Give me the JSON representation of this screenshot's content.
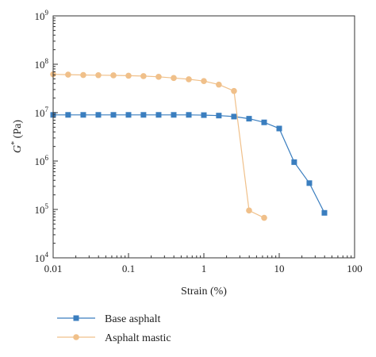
{
  "chart_data": {
    "type": "line",
    "xscale": "log",
    "yscale": "log",
    "xlim": [
      0.01,
      100
    ],
    "ylim": [
      10000,
      1000000000
    ],
    "xlabel": "Strain (%)",
    "ylabel_main": "G",
    "ylabel_sup": "*",
    "ylabel_unit": " (Pa)",
    "x_ticks": [
      {
        "value": 0.01,
        "label": "0.01"
      },
      {
        "value": 0.1,
        "label": "0.1"
      },
      {
        "value": 1,
        "label": "1"
      },
      {
        "value": 10,
        "label": "10"
      },
      {
        "value": 100,
        "label": "100"
      }
    ],
    "y_ticks": [
      {
        "value": 10000,
        "base": "10",
        "exp": "4"
      },
      {
        "value": 100000,
        "base": "10",
        "exp": "5"
      },
      {
        "value": 1000000,
        "base": "10",
        "exp": "6"
      },
      {
        "value": 10000000,
        "base": "10",
        "exp": "7"
      },
      {
        "value": 100000000,
        "base": "10",
        "exp": "8"
      },
      {
        "value": 1000000000,
        "base": "10",
        "exp": "9"
      }
    ],
    "grid": false,
    "legend_position": "bottom-left",
    "series": [
      {
        "name": "Base asphalt",
        "color": "#3a7ebf",
        "marker": "square",
        "points": [
          [
            0.01,
            9000000
          ],
          [
            0.0158,
            9000000
          ],
          [
            0.0251,
            9000000
          ],
          [
            0.0398,
            9000000
          ],
          [
            0.0631,
            9000000
          ],
          [
            0.1,
            9000000
          ],
          [
            0.158,
            9000000
          ],
          [
            0.251,
            9000000
          ],
          [
            0.398,
            9000000
          ],
          [
            0.631,
            9000000
          ],
          [
            1,
            8900000
          ],
          [
            1.58,
            8700000
          ],
          [
            2.51,
            8300000
          ],
          [
            3.98,
            7500000
          ],
          [
            6.31,
            6300000
          ],
          [
            10,
            4700000
          ],
          [
            15.8,
            950000
          ],
          [
            25.1,
            350000
          ],
          [
            39.8,
            85000
          ]
        ]
      },
      {
        "name": "Asphalt mastic",
        "color": "#f0c08a",
        "marker": "circle",
        "points": [
          [
            0.01,
            62000000
          ],
          [
            0.0158,
            61000000
          ],
          [
            0.0251,
            60000000
          ],
          [
            0.0398,
            59500000
          ],
          [
            0.0631,
            59000000
          ],
          [
            0.1,
            58000000
          ],
          [
            0.158,
            57000000
          ],
          [
            0.251,
            55000000
          ],
          [
            0.398,
            52000000
          ],
          [
            0.631,
            49000000
          ],
          [
            1,
            45000000
          ],
          [
            1.58,
            38000000
          ],
          [
            2.51,
            28000000
          ],
          [
            3.98,
            95000
          ],
          [
            6.31,
            67000
          ]
        ]
      }
    ]
  }
}
